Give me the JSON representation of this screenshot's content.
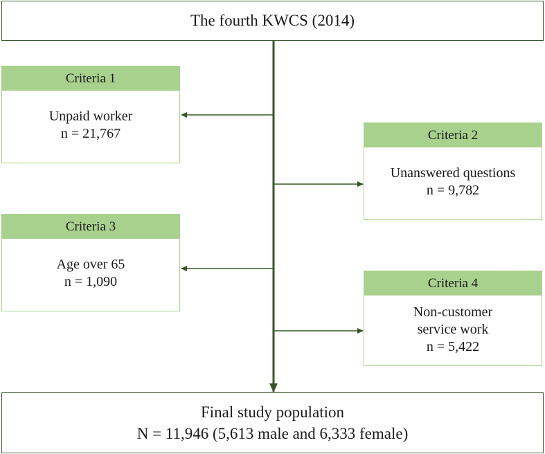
{
  "top": {
    "title": "The fourth KWCS (2014)"
  },
  "criteria": [
    {
      "heading": "Criteria 1",
      "lines": [
        "Unpaid worker",
        "n = 21,767"
      ]
    },
    {
      "heading": "Criteria 2",
      "lines": [
        "Unanswered questions",
        "n = 9,782"
      ]
    },
    {
      "heading": "Criteria 3",
      "lines": [
        "Age over 65",
        "n = 1,090"
      ]
    },
    {
      "heading": "Criteria 4",
      "lines": [
        "Non-customer",
        "service work",
        "n = 5,422"
      ]
    }
  ],
  "final": {
    "line1": "Final study population",
    "line2": "N = 11,946 (5,613 male and 6,333 female)"
  },
  "colors": {
    "frame": "#3d5a32",
    "criteria_fill": "#a9d18e",
    "arrow": "#375623"
  }
}
